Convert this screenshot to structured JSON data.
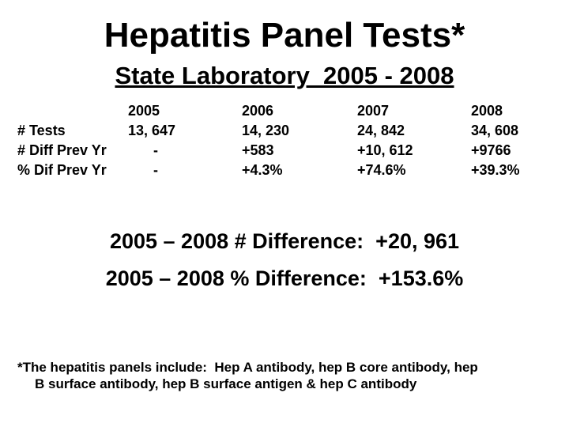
{
  "header": {
    "title": "Hepatitis Panel Tests*",
    "subtitle": "State Laboratory  2005 - 2008"
  },
  "table": {
    "columns": [
      "2005",
      "2006",
      "2007",
      "2008"
    ],
    "rows": [
      [
        "# Tests",
        "13, 647",
        "14, 230",
        "24, 842",
        "34, 608"
      ],
      [
        "# Diff Prev Yr",
        "-",
        "+583",
        "+10, 612",
        "+9766"
      ],
      [
        "% Dif Prev Yr",
        "-",
        "+4.3%",
        "+74.6%",
        "+39.3%"
      ]
    ]
  },
  "summary": [
    "2005 – 2008 # Difference:  +20, 961",
    "2005 – 2008 % Difference:  +153.6%"
  ],
  "footnote": [
    "*The hepatitis panels include:  Hep A antibody, hep B core antibody, hep",
    "B surface antibody, hep B surface antigen & hep C antibody"
  ]
}
